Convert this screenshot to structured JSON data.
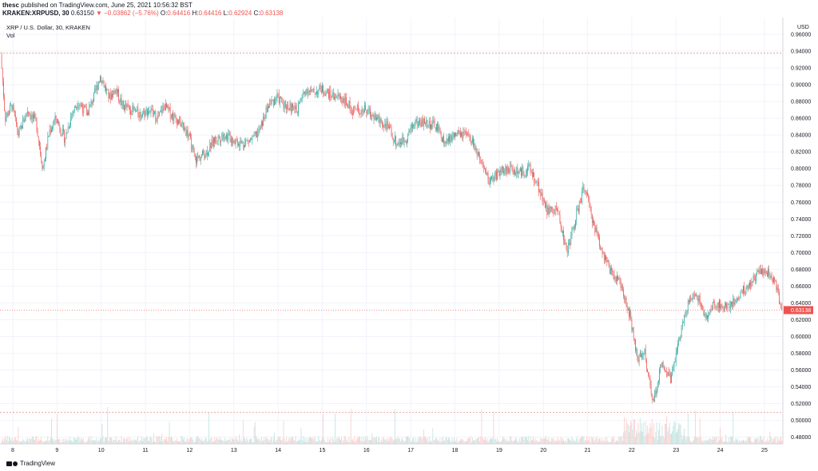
{
  "header": {
    "publisher": "thesc",
    "published_text": "published on TradingView.com, June 25, 2021 10:56:32 BST"
  },
  "ticker": {
    "symbol": "KRAKEN:XRPUSD, 30",
    "last": "0.63150",
    "change": "▼ −0.03862 (−5.76%)",
    "open_label": "O:",
    "open": "0.64416",
    "high_label": "H:",
    "high": "0.64416",
    "low_label": "L:",
    "low": "0.62924",
    "close_label": "C:",
    "close": "0.63138"
  },
  "legend": {
    "title": "XRP / U.S. Dollar, 30, KRAKEN",
    "vol": "Vol"
  },
  "footer": {
    "brand": "TradingView"
  },
  "colors": {
    "up": "#26a69a",
    "down": "#ef5350",
    "grid": "#f0f3fa",
    "axis_text": "#131722",
    "vol_up": "#b2dfdb",
    "vol_down": "#f8c4c3"
  },
  "chart_data": {
    "type": "candlestick",
    "currency": "USD",
    "x_tick_labels": [
      "8",
      "9",
      "10",
      "11",
      "12",
      "13",
      "14",
      "15",
      "16",
      "17",
      "18",
      "19",
      "20",
      "21",
      "22",
      "23",
      "24",
      "25"
    ],
    "y_tick_labels": [
      "0.96000",
      "0.94000",
      "0.92000",
      "0.90000",
      "0.88000",
      "0.86000",
      "0.84000",
      "0.82000",
      "0.80000",
      "0.78000",
      "0.76000",
      "0.74000",
      "0.72000",
      "0.70000",
      "0.68000",
      "0.66000",
      "0.64000",
      "0.62000",
      "0.60000",
      "0.58000",
      "0.56000",
      "0.54000",
      "0.52000",
      "0.50000",
      "0.48000"
    ],
    "ylim": [
      0.472,
      0.98
    ],
    "last_price": "0.63138",
    "dashed_levels": [
      0.9376,
      0.5094
    ],
    "price_path": [
      [
        7.75,
        0.935
      ],
      [
        7.85,
        0.86
      ],
      [
        8.0,
        0.875
      ],
      [
        8.15,
        0.84
      ],
      [
        8.35,
        0.87
      ],
      [
        8.55,
        0.855
      ],
      [
        8.7,
        0.8
      ],
      [
        8.85,
        0.845
      ],
      [
        9.0,
        0.86
      ],
      [
        9.2,
        0.835
      ],
      [
        9.35,
        0.865
      ],
      [
        9.5,
        0.88
      ],
      [
        9.7,
        0.865
      ],
      [
        9.85,
        0.885
      ],
      [
        10.0,
        0.91
      ],
      [
        10.2,
        0.885
      ],
      [
        10.35,
        0.895
      ],
      [
        10.5,
        0.875
      ],
      [
        10.7,
        0.87
      ],
      [
        10.9,
        0.865
      ],
      [
        11.1,
        0.87
      ],
      [
        11.3,
        0.86
      ],
      [
        11.45,
        0.875
      ],
      [
        11.6,
        0.865
      ],
      [
        11.8,
        0.855
      ],
      [
        12.0,
        0.84
      ],
      [
        12.15,
        0.81
      ],
      [
        12.4,
        0.82
      ],
      [
        12.6,
        0.835
      ],
      [
        12.8,
        0.84
      ],
      [
        13.0,
        0.835
      ],
      [
        13.2,
        0.83
      ],
      [
        13.45,
        0.835
      ],
      [
        13.6,
        0.845
      ],
      [
        13.8,
        0.875
      ],
      [
        14.0,
        0.885
      ],
      [
        14.2,
        0.875
      ],
      [
        14.45,
        0.87
      ],
      [
        14.65,
        0.895
      ],
      [
        14.8,
        0.89
      ],
      [
        15.0,
        0.895
      ],
      [
        15.2,
        0.888
      ],
      [
        15.45,
        0.885
      ],
      [
        15.7,
        0.87
      ],
      [
        16.0,
        0.87
      ],
      [
        16.25,
        0.86
      ],
      [
        16.5,
        0.85
      ],
      [
        16.7,
        0.83
      ],
      [
        16.9,
        0.835
      ],
      [
        17.1,
        0.855
      ],
      [
        17.35,
        0.855
      ],
      [
        17.6,
        0.85
      ],
      [
        17.8,
        0.83
      ],
      [
        18.0,
        0.84
      ],
      [
        18.25,
        0.84
      ],
      [
        18.45,
        0.83
      ],
      [
        18.6,
        0.805
      ],
      [
        18.8,
        0.785
      ],
      [
        19.0,
        0.795
      ],
      [
        19.25,
        0.8
      ],
      [
        19.5,
        0.795
      ],
      [
        19.7,
        0.8
      ],
      [
        19.9,
        0.78
      ],
      [
        20.1,
        0.75
      ],
      [
        20.35,
        0.75
      ],
      [
        20.55,
        0.7
      ],
      [
        20.75,
        0.74
      ],
      [
        20.95,
        0.78
      ],
      [
        21.1,
        0.745
      ],
      [
        21.3,
        0.71
      ],
      [
        21.55,
        0.675
      ],
      [
        21.8,
        0.66
      ],
      [
        22.0,
        0.62
      ],
      [
        22.15,
        0.57
      ],
      [
        22.3,
        0.585
      ],
      [
        22.5,
        0.52
      ],
      [
        22.7,
        0.57
      ],
      [
        22.9,
        0.55
      ],
      [
        23.1,
        0.6
      ],
      [
        23.3,
        0.64
      ],
      [
        23.5,
        0.65
      ],
      [
        23.7,
        0.62
      ],
      [
        23.9,
        0.64
      ],
      [
        24.1,
        0.635
      ],
      [
        24.3,
        0.64
      ],
      [
        24.55,
        0.655
      ],
      [
        24.75,
        0.665
      ],
      [
        24.9,
        0.68
      ],
      [
        25.1,
        0.675
      ],
      [
        25.25,
        0.665
      ],
      [
        25.42,
        0.6315
      ]
    ]
  }
}
